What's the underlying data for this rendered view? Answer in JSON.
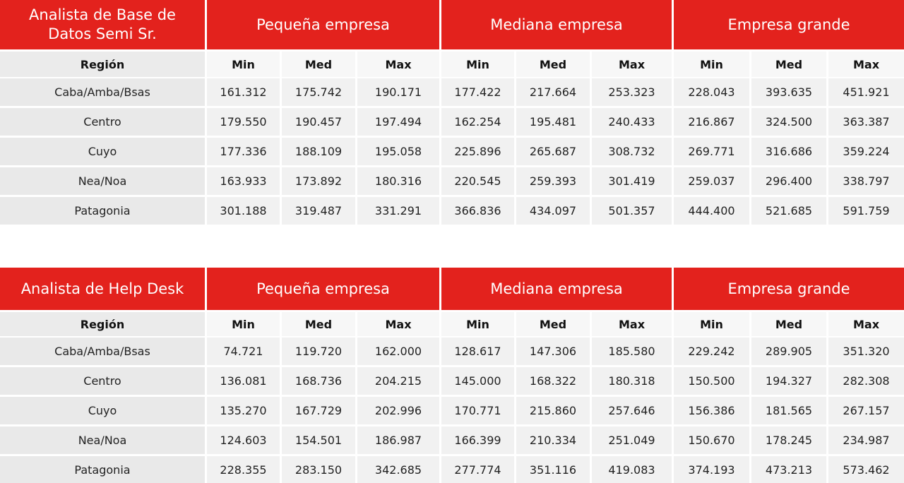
{
  "tables": [
    {
      "title_line1": "Analista de Base de",
      "title_line2": "Datos Semi Sr.",
      "groups": [
        "Pequeña empresa",
        "Mediana empresa",
        "Empresa grande"
      ],
      "region_header": "Región",
      "sub_headers": [
        "Min",
        "Med",
        "Max",
        "Min",
        "Med",
        "Max",
        "Min",
        "Med",
        "Max"
      ],
      "rows": [
        {
          "region": "Caba/Amba/Bsas",
          "values": [
            "161.312",
            "175.742",
            "190.171",
            "177.422",
            "217.664",
            "253.323",
            "228.043",
            "393.635",
            "451.921"
          ]
        },
        {
          "region": "Centro",
          "values": [
            "179.550",
            "190.457",
            "197.494",
            "162.254",
            "195.481",
            "240.433",
            "216.867",
            "324.500",
            "363.387"
          ]
        },
        {
          "region": "Cuyo",
          "values": [
            "177.336",
            "188.109",
            "195.058",
            "225.896",
            "265.687",
            "308.732",
            "269.771",
            "316.686",
            "359.224"
          ]
        },
        {
          "region": "Nea/Noa",
          "values": [
            "163.933",
            "173.892",
            "180.316",
            "220.545",
            "259.393",
            "301.419",
            "259.037",
            "296.400",
            "338.797"
          ]
        },
        {
          "region": "Patagonia",
          "values": [
            "301.188",
            "319.487",
            "331.291",
            "366.836",
            "434.097",
            "501.357",
            "444.400",
            "521.685",
            "591.759"
          ]
        }
      ]
    },
    {
      "title_line1": "Analista de Help Desk",
      "title_line2": "",
      "groups": [
        "Pequeña empresa",
        "Mediana empresa",
        "Empresa grande"
      ],
      "region_header": "Región",
      "sub_headers": [
        "Min",
        "Med",
        "Max",
        "Min",
        "Med",
        "Max",
        "Min",
        "Med",
        "Max"
      ],
      "rows": [
        {
          "region": "Caba/Amba/Bsas",
          "values": [
            "74.721",
            "119.720",
            "162.000",
            "128.617",
            "147.306",
            "185.580",
            "229.242",
            "289.905",
            "351.320"
          ]
        },
        {
          "region": "Centro",
          "values": [
            "136.081",
            "168.736",
            "204.215",
            "145.000",
            "168.322",
            "180.318",
            "150.500",
            "194.327",
            "282.308"
          ]
        },
        {
          "region": "Cuyo",
          "values": [
            "135.270",
            "167.729",
            "202.996",
            "170.771",
            "215.860",
            "257.646",
            "156.386",
            "181.565",
            "267.157"
          ]
        },
        {
          "region": "Nea/Noa",
          "values": [
            "124.603",
            "154.501",
            "186.987",
            "166.399",
            "210.334",
            "251.049",
            "150.670",
            "178.245",
            "234.987"
          ]
        },
        {
          "region": "Patagonia",
          "values": [
            "228.355",
            "283.150",
            "342.685",
            "277.774",
            "351.116",
            "419.083",
            "374.193",
            "473.213",
            "573.462"
          ]
        }
      ]
    }
  ]
}
